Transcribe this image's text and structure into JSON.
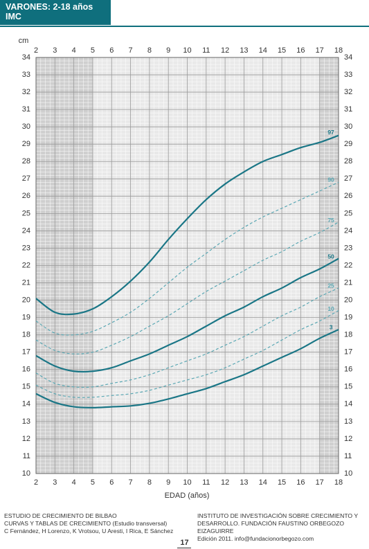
{
  "header": {
    "title": "VARONES: 2-18 años",
    "subtitle": "IMC"
  },
  "chart_data": {
    "type": "line",
    "y_label": "cm",
    "x_label": "EDAD (años)",
    "x": [
      2,
      3,
      4,
      5,
      6,
      7,
      8,
      9,
      10,
      11,
      12,
      13,
      14,
      15,
      16,
      17,
      18
    ],
    "xlim": [
      2,
      18
    ],
    "xticks": [
      2,
      3,
      4,
      5,
      6,
      7,
      8,
      9,
      10,
      11,
      12,
      13,
      14,
      15,
      16,
      17,
      18
    ],
    "ylim": [
      10,
      34
    ],
    "yticks": [
      10,
      11,
      12,
      13,
      14,
      15,
      16,
      17,
      18,
      19,
      20,
      21,
      22,
      23,
      24,
      25,
      26,
      27,
      28,
      29,
      30,
      31,
      32,
      33,
      34
    ],
    "grid": true,
    "series": [
      {
        "name": "97",
        "color": "#1a7686",
        "line_style": "solid",
        "values": [
          20.1,
          19.3,
          19.2,
          19.5,
          20.2,
          21.1,
          22.2,
          23.5,
          24.7,
          25.8,
          26.7,
          27.4,
          28.0,
          28.4,
          28.8,
          29.1,
          29.5
        ]
      },
      {
        "name": "90",
        "color": "#5aa7b3",
        "line_style": "dashed",
        "values": [
          18.8,
          18.1,
          18.0,
          18.2,
          18.7,
          19.3,
          20.1,
          21.0,
          21.9,
          22.7,
          23.5,
          24.2,
          24.8,
          25.3,
          25.8,
          26.3,
          26.8
        ]
      },
      {
        "name": "75",
        "color": "#5aa7b3",
        "line_style": "dashed",
        "values": [
          17.7,
          17.1,
          16.9,
          17.0,
          17.4,
          17.9,
          18.5,
          19.1,
          19.8,
          20.5,
          21.1,
          21.7,
          22.3,
          22.8,
          23.4,
          23.9,
          24.5
        ]
      },
      {
        "name": "50",
        "color": "#1a7686",
        "line_style": "solid",
        "values": [
          16.8,
          16.2,
          15.9,
          15.9,
          16.1,
          16.5,
          16.9,
          17.4,
          17.9,
          18.5,
          19.1,
          19.6,
          20.2,
          20.7,
          21.3,
          21.8,
          22.4
        ]
      },
      {
        "name": "25",
        "color": "#5aa7b3",
        "line_style": "dashed",
        "values": [
          15.8,
          15.2,
          15.0,
          15.0,
          15.2,
          15.4,
          15.7,
          16.1,
          16.5,
          16.9,
          17.4,
          17.9,
          18.5,
          19.1,
          19.6,
          20.2,
          20.7
        ]
      },
      {
        "name": "10",
        "color": "#5aa7b3",
        "line_style": "dashed",
        "values": [
          15.1,
          14.6,
          14.4,
          14.4,
          14.5,
          14.6,
          14.8,
          15.1,
          15.4,
          15.7,
          16.1,
          16.6,
          17.1,
          17.7,
          18.3,
          18.8,
          19.4
        ]
      },
      {
        "name": "3",
        "color": "#1a7686",
        "line_style": "solid",
        "values": [
          14.6,
          14.1,
          13.85,
          13.8,
          13.85,
          13.9,
          14.05,
          14.3,
          14.6,
          14.9,
          15.3,
          15.7,
          16.2,
          16.7,
          17.2,
          17.8,
          18.3
        ]
      }
    ]
  },
  "footer": {
    "left": [
      "ESTUDIO DE CRECIMIENTO DE BILBAO",
      "CURVAS Y TABLAS DE CRECIMIENTO (Estudio transversal)",
      "C Fernández, H Lorenzo, K Vrotsou, U Aresti, I Rica, E Sánchez"
    ],
    "right": [
      "INSTITUTO DE INVESTIGACIÓN SOBRE CRECIMIENTO Y",
      "DESARROLLO. FUNDACIÓN FAUSTINO ORBEGOZO EIZAGUIRRE",
      "Edición 2011. info@fundacionorbegozo.com"
    ],
    "page": "17"
  }
}
